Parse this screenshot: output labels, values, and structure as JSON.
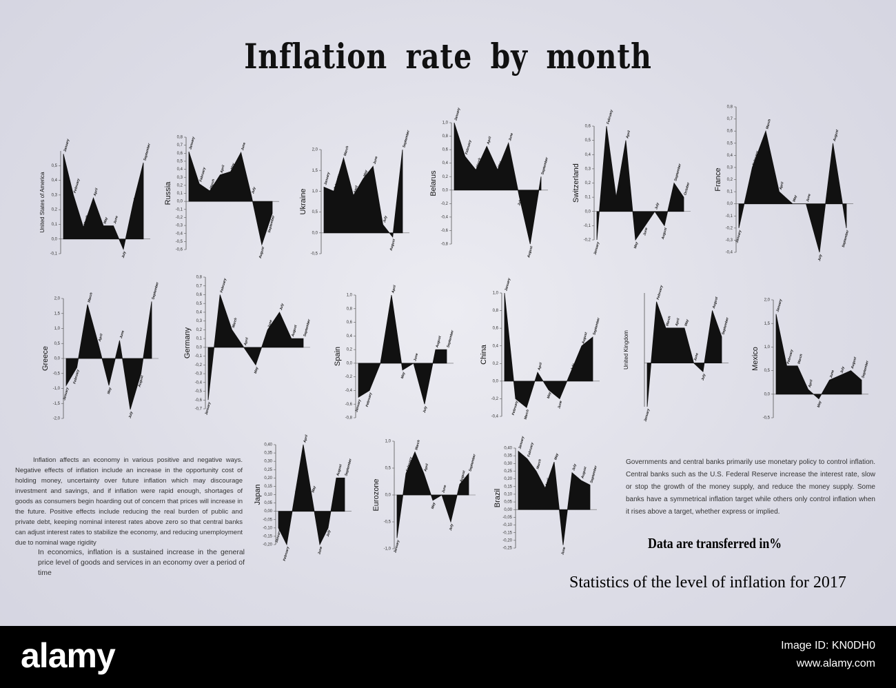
{
  "header": {
    "title": "Inflation rate by month"
  },
  "chart_data": [
    {
      "type": "area",
      "name": "United States of America",
      "categories": [
        "January",
        "February",
        "March",
        "April",
        "May",
        "June",
        "July",
        "August",
        "September"
      ],
      "values": [
        0.58,
        0.3,
        0.08,
        0.28,
        0.09,
        0.09,
        -0.07,
        0.25,
        0.52
      ],
      "ylim": [
        -0.1,
        0.6
      ],
      "yticks": [
        {
          "value": -0.1,
          "label": "-0,1"
        },
        {
          "value": 0,
          "label": "0,0"
        },
        {
          "value": 0.1,
          "label": "0,1"
        },
        {
          "value": 0.2,
          "label": "0,2"
        },
        {
          "value": 0.3,
          "label": "0,3"
        },
        {
          "value": 0.4,
          "label": "0,4"
        },
        {
          "value": 0.5,
          "label": "0,5"
        }
      ]
    },
    {
      "type": "area",
      "name": "Russia",
      "categories": [
        "January",
        "February",
        "March",
        "April",
        "May",
        "June",
        "July",
        "August",
        "September"
      ],
      "values": [
        0.62,
        0.22,
        0.13,
        0.33,
        0.37,
        0.61,
        0.07,
        -0.54,
        -0.15
      ],
      "ylim": [
        -0.6,
        0.8
      ],
      "yticks": [
        {
          "value": -0.6,
          "label": "-0,6"
        },
        {
          "value": -0.5,
          "label": "-0,5"
        },
        {
          "value": -0.4,
          "label": "-0,4"
        },
        {
          "value": -0.3,
          "label": "-0,3"
        },
        {
          "value": -0.2,
          "label": "-0,2"
        },
        {
          "value": -0.1,
          "label": "-0,1"
        },
        {
          "value": 0,
          "label": "0,0"
        },
        {
          "value": 0.1,
          "label": "0,1"
        },
        {
          "value": 0.2,
          "label": "0,2"
        },
        {
          "value": 0.3,
          "label": "0,3"
        },
        {
          "value": 0.4,
          "label": "0,4"
        },
        {
          "value": 0.5,
          "label": "0,5"
        },
        {
          "value": 0.6,
          "label": "0,6"
        },
        {
          "value": 0.7,
          "label": "0,7"
        },
        {
          "value": 0.8,
          "label": "0,8"
        }
      ]
    },
    {
      "type": "area",
      "name": "Ukraine",
      "categories": [
        "January",
        "February",
        "March",
        "April",
        "May",
        "June",
        "July",
        "August",
        "September"
      ],
      "values": [
        1.1,
        1.0,
        1.8,
        0.9,
        1.3,
        1.6,
        0.2,
        -0.1,
        2.0
      ],
      "ylim": [
        -0.5,
        2.0
      ],
      "yticks": [
        {
          "value": -0.5,
          "label": "-0,5"
        },
        {
          "value": 0,
          "label": "0,0"
        },
        {
          "value": 0.5,
          "label": "0,5"
        },
        {
          "value": 1,
          "label": "1,0"
        },
        {
          "value": 1.5,
          "label": "1,5"
        },
        {
          "value": 2,
          "label": "2,0"
        }
      ]
    },
    {
      "type": "area",
      "name": "Belarus",
      "categories": [
        "January",
        "February",
        "March",
        "April",
        "May",
        "June",
        "July",
        "August",
        "September"
      ],
      "values": [
        1.0,
        0.5,
        0.3,
        0.65,
        0.3,
        0.7,
        -0.1,
        -0.8,
        0.2
      ],
      "ylim": [
        -0.8,
        1.0
      ],
      "yticks": [
        {
          "value": -0.8,
          "label": "-0,8"
        },
        {
          "value": -0.6,
          "label": "-0,6"
        },
        {
          "value": -0.4,
          "label": "-0,4"
        },
        {
          "value": -0.2,
          "label": "-0,2"
        },
        {
          "value": 0,
          "label": "0,0"
        },
        {
          "value": 0.2,
          "label": "0,2"
        },
        {
          "value": 0.4,
          "label": "0,4"
        },
        {
          "value": 0.6,
          "label": "0,6"
        },
        {
          "value": 0.8,
          "label": "0,8"
        },
        {
          "value": 1,
          "label": "1,0"
        }
      ]
    },
    {
      "type": "area",
      "name": "Switzerland",
      "categories": [
        "January",
        "February",
        "March",
        "April",
        "May",
        "June",
        "July",
        "August",
        "September",
        "October"
      ],
      "values": [
        -0.2,
        0.6,
        0.1,
        0.5,
        -0.2,
        -0.1,
        0.0,
        -0.1,
        0.2,
        0.1
      ],
      "ylim": [
        -0.2,
        0.6
      ],
      "yticks": [
        {
          "value": -0.2,
          "label": "-0,2"
        },
        {
          "value": -0.1,
          "label": "-0,1"
        },
        {
          "value": 0,
          "label": "0,0"
        },
        {
          "value": 0.1,
          "label": "0,1"
        },
        {
          "value": 0.2,
          "label": "0,2"
        },
        {
          "value": 0.3,
          "label": "0,3"
        },
        {
          "value": 0.4,
          "label": "0,4"
        },
        {
          "value": 0.5,
          "label": "0,5"
        },
        {
          "value": 0.6,
          "label": "0,6"
        }
      ]
    },
    {
      "type": "area",
      "name": "France",
      "categories": [
        "January",
        "February",
        "March",
        "April",
        "May",
        "June",
        "July",
        "August",
        "September"
      ],
      "values": [
        -0.2,
        0.3,
        0.6,
        0.1,
        0.0,
        0.0,
        -0.4,
        0.5,
        -0.2
      ],
      "ylim": [
        -0.4,
        0.8
      ],
      "yticks": [
        {
          "value": -0.4,
          "label": "-0,4"
        },
        {
          "value": -0.3,
          "label": "-0,3"
        },
        {
          "value": -0.2,
          "label": "-0,2"
        },
        {
          "value": -0.1,
          "label": "-0,1"
        },
        {
          "value": 0,
          "label": "0,0"
        },
        {
          "value": 0.1,
          "label": "0,1"
        },
        {
          "value": 0.2,
          "label": "0,2"
        },
        {
          "value": 0.3,
          "label": "0,3"
        },
        {
          "value": 0.4,
          "label": "0,4"
        },
        {
          "value": 0.5,
          "label": "0,5"
        },
        {
          "value": 0.6,
          "label": "0,6"
        },
        {
          "value": 0.7,
          "label": "0,7"
        },
        {
          "value": 0.8,
          "label": "0,8"
        }
      ]
    },
    {
      "type": "area",
      "name": "Greece",
      "categories": [
        "January",
        "February",
        "March",
        "April",
        "May",
        "June",
        "July",
        "August",
        "September"
      ],
      "values": [
        -0.9,
        -0.3,
        1.8,
        0.5,
        -0.9,
        0.6,
        -1.7,
        -0.5,
        1.9
      ],
      "ylim": [
        -2.0,
        2.0
      ],
      "yticks": [
        {
          "value": -2,
          "label": "-2,0"
        },
        {
          "value": -1.5,
          "label": "-1,5"
        },
        {
          "value": -1,
          "label": "-1,0"
        },
        {
          "value": -0.5,
          "label": "-0,5"
        },
        {
          "value": 0,
          "label": "0,0"
        },
        {
          "value": 0.5,
          "label": "0,5"
        },
        {
          "value": 1,
          "label": "1,0"
        },
        {
          "value": 1.5,
          "label": "1,5"
        },
        {
          "value": 2,
          "label": "2,0"
        }
      ]
    },
    {
      "type": "area",
      "name": "Germany",
      "categories": [
        "January",
        "February",
        "March",
        "April",
        "May",
        "June",
        "July",
        "August",
        "September"
      ],
      "values": [
        -0.6,
        0.6,
        0.2,
        0.0,
        -0.2,
        0.2,
        0.4,
        0.1,
        0.1
      ],
      "ylim": [
        -0.7,
        0.8
      ],
      "yticks": [
        {
          "value": -0.7,
          "label": "-0,7"
        },
        {
          "value": -0.6,
          "label": "-0,6"
        },
        {
          "value": -0.5,
          "label": "-0,5"
        },
        {
          "value": -0.4,
          "label": "-0,4"
        },
        {
          "value": -0.3,
          "label": "-0,3"
        },
        {
          "value": -0.2,
          "label": "-0,2"
        },
        {
          "value": -0.1,
          "label": "-0,1"
        },
        {
          "value": 0,
          "label": "0,0"
        },
        {
          "value": 0.1,
          "label": "0,1"
        },
        {
          "value": 0.2,
          "label": "0,2"
        },
        {
          "value": 0.3,
          "label": "0,3"
        },
        {
          "value": 0.4,
          "label": "0,4"
        },
        {
          "value": 0.5,
          "label": "0,5"
        },
        {
          "value": 0.6,
          "label": "0,6"
        },
        {
          "value": 0.7,
          "label": "0,7"
        },
        {
          "value": 0.8,
          "label": "0,8"
        }
      ]
    },
    {
      "type": "area",
      "name": "Spain",
      "categories": [
        "January",
        "February",
        "March",
        "April",
        "May",
        "June",
        "July",
        "August",
        "September"
      ],
      "values": [
        -0.5,
        -0.4,
        0.0,
        1.0,
        -0.1,
        0.0,
        -0.6,
        0.2,
        0.2
      ],
      "ylim": [
        -0.8,
        1.0
      ],
      "yticks": [
        {
          "value": -0.8,
          "label": "-0,8"
        },
        {
          "value": -0.6,
          "label": "-0,6"
        },
        {
          "value": -0.4,
          "label": "-0,4"
        },
        {
          "value": -0.2,
          "label": "-0,2"
        },
        {
          "value": 0,
          "label": "0,0"
        },
        {
          "value": 0.2,
          "label": "0,2"
        },
        {
          "value": 0.4,
          "label": "0,4"
        },
        {
          "value": 0.6,
          "label": "0,6"
        },
        {
          "value": 0.8,
          "label": "0,8"
        },
        {
          "value": 1,
          "label": "1,0"
        }
      ]
    },
    {
      "type": "area",
      "name": "China",
      "categories": [
        "January",
        "February",
        "March",
        "April",
        "May",
        "June",
        "July",
        "August",
        "September"
      ],
      "values": [
        1.0,
        -0.2,
        -0.3,
        0.1,
        -0.1,
        -0.2,
        0.1,
        0.4,
        0.5
      ],
      "ylim": [
        -0.4,
        1.0
      ],
      "yticks": [
        {
          "value": -0.4,
          "label": "-0,4"
        },
        {
          "value": -0.2,
          "label": "-0,2"
        },
        {
          "value": 0,
          "label": "0,0"
        },
        {
          "value": 0.2,
          "label": "0,2"
        },
        {
          "value": 0.4,
          "label": "0,4"
        },
        {
          "value": 0.6,
          "label": "0,6"
        },
        {
          "value": 0.8,
          "label": "0,8"
        },
        {
          "value": 1,
          "label": "1,0"
        }
      ]
    },
    {
      "type": "area",
      "name": "United Kingdom",
      "categories": [
        "January",
        "February",
        "March",
        "April",
        "May",
        "June",
        "July",
        "August",
        "September"
      ],
      "values": [
        -0.5,
        0.7,
        0.4,
        0.4,
        0.4,
        0.0,
        -0.1,
        0.6,
        0.3
      ],
      "ylim": [
        -0.5,
        0.8
      ],
      "yticks": []
    },
    {
      "type": "area",
      "name": "Mexico",
      "categories": [
        "January",
        "February",
        "March",
        "April",
        "May",
        "June",
        "July",
        "August",
        "September"
      ],
      "values": [
        1.7,
        0.6,
        0.6,
        0.1,
        -0.1,
        0.3,
        0.4,
        0.5,
        0.3
      ],
      "ylim": [
        -0.5,
        2.0
      ],
      "yticks": [
        {
          "value": -0.5,
          "label": "-0,5"
        },
        {
          "value": 0,
          "label": "0,0"
        },
        {
          "value": 0.5,
          "label": "0,5"
        },
        {
          "value": 1,
          "label": "1,0"
        },
        {
          "value": 1.5,
          "label": "1,5"
        },
        {
          "value": 2,
          "label": "2,0"
        }
      ]
    },
    {
      "type": "area",
      "name": "Japan",
      "categories": [
        "January",
        "February",
        "March",
        "April",
        "May",
        "June",
        "July",
        "August",
        "September"
      ],
      "values": [
        -0.1,
        -0.2,
        0.1,
        0.4,
        0.1,
        -0.2,
        -0.1,
        0.2,
        0.2
      ],
      "ylim": [
        -0.2,
        0.4
      ],
      "yticks": [
        {
          "value": -0.2,
          "label": "-0,20"
        },
        {
          "value": -0.15,
          "label": "-0,15"
        },
        {
          "value": -0.1,
          "label": "-0,10"
        },
        {
          "value": -0.05,
          "label": "-0,05"
        },
        {
          "value": 0,
          "label": "0,00"
        },
        {
          "value": 0.05,
          "label": "0,05"
        },
        {
          "value": 0.1,
          "label": "0,10"
        },
        {
          "value": 0.15,
          "label": "0,15"
        },
        {
          "value": 0.2,
          "label": "0,20"
        },
        {
          "value": 0.25,
          "label": "0,25"
        },
        {
          "value": 0.3,
          "label": "0,30"
        },
        {
          "value": 0.35,
          "label": "0,35"
        },
        {
          "value": 0.4,
          "label": "0,40"
        }
      ]
    },
    {
      "type": "area",
      "name": "Eurozone",
      "categories": [
        "January",
        "February",
        "March",
        "April",
        "May",
        "June",
        "July",
        "August",
        "September"
      ],
      "values": [
        -0.8,
        0.4,
        0.8,
        0.4,
        -0.1,
        0.0,
        -0.5,
        0.2,
        0.4
      ],
      "ylim": [
        -1.0,
        1.0
      ],
      "yticks": [
        {
          "value": -1,
          "label": "-1,0"
        },
        {
          "value": -0.5,
          "label": "-0,5"
        },
        {
          "value": 0,
          "label": "0,0"
        },
        {
          "value": 0.5,
          "label": "0,5"
        },
        {
          "value": 1,
          "label": "1,0"
        }
      ]
    },
    {
      "type": "area",
      "name": "Brazil",
      "categories": [
        "January",
        "February",
        "March",
        "April",
        "May",
        "June",
        "July",
        "August",
        "September"
      ],
      "values": [
        0.38,
        0.33,
        0.25,
        0.14,
        0.31,
        -0.23,
        0.24,
        0.19,
        0.16
      ],
      "ylim": [
        -0.25,
        0.4
      ],
      "yticks": [
        {
          "value": -0.25,
          "label": "-0,25"
        },
        {
          "value": -0.2,
          "label": "-0,20"
        },
        {
          "value": -0.15,
          "label": "-0,15"
        },
        {
          "value": -0.1,
          "label": "-0,10"
        },
        {
          "value": -0.05,
          "label": "-0,05"
        },
        {
          "value": 0,
          "label": "0,00"
        },
        {
          "value": 0.05,
          "label": "0,05"
        },
        {
          "value": 0.1,
          "label": "0,10"
        },
        {
          "value": 0.15,
          "label": "0,15"
        },
        {
          "value": 0.2,
          "label": "0,20"
        },
        {
          "value": 0.25,
          "label": "0,25"
        },
        {
          "value": 0.3,
          "label": "0,30"
        },
        {
          "value": 0.35,
          "label": "0,35"
        },
        {
          "value": 0.4,
          "label": "0,40"
        }
      ]
    }
  ],
  "notes": {
    "left": "Inflation affects an economy in various positive and negative ways. Negative effects of inflation include an increase in the opportunity cost of holding money, uncertainty over future inflation which may discourage investment and savings, and if inflation were rapid enough, shortages of goods as consumers begin hoarding out of concern that prices will increase in the future. Positive effects include reducing the real burden of public and private debt, keeping nominal interest rates above zero so that central banks can adjust interest rates to stabilize the economy, and reducing unemployment due to nominal wage rigidity",
    "definition": "In economics, inflation is a sustained increase in the general price level of goods and services in an economy over a period of time",
    "right": "Governments and central banks primarily use monetary policy to control inflation. Central banks such as the U.S. Federal Reserve increase the interest rate, slow or stop the growth of the money supply, and reduce the money supply. Some banks have a symmetrical inflation target while others only control inflation when it rises above a target, whether express or implied.",
    "units": "Data are transferred in%",
    "statistics": "Statistics of the level of inflation for 2017"
  },
  "footer": {
    "logo": "alamy",
    "image_id": "Image ID: KN0DH0",
    "site": "www.alamy.com"
  }
}
